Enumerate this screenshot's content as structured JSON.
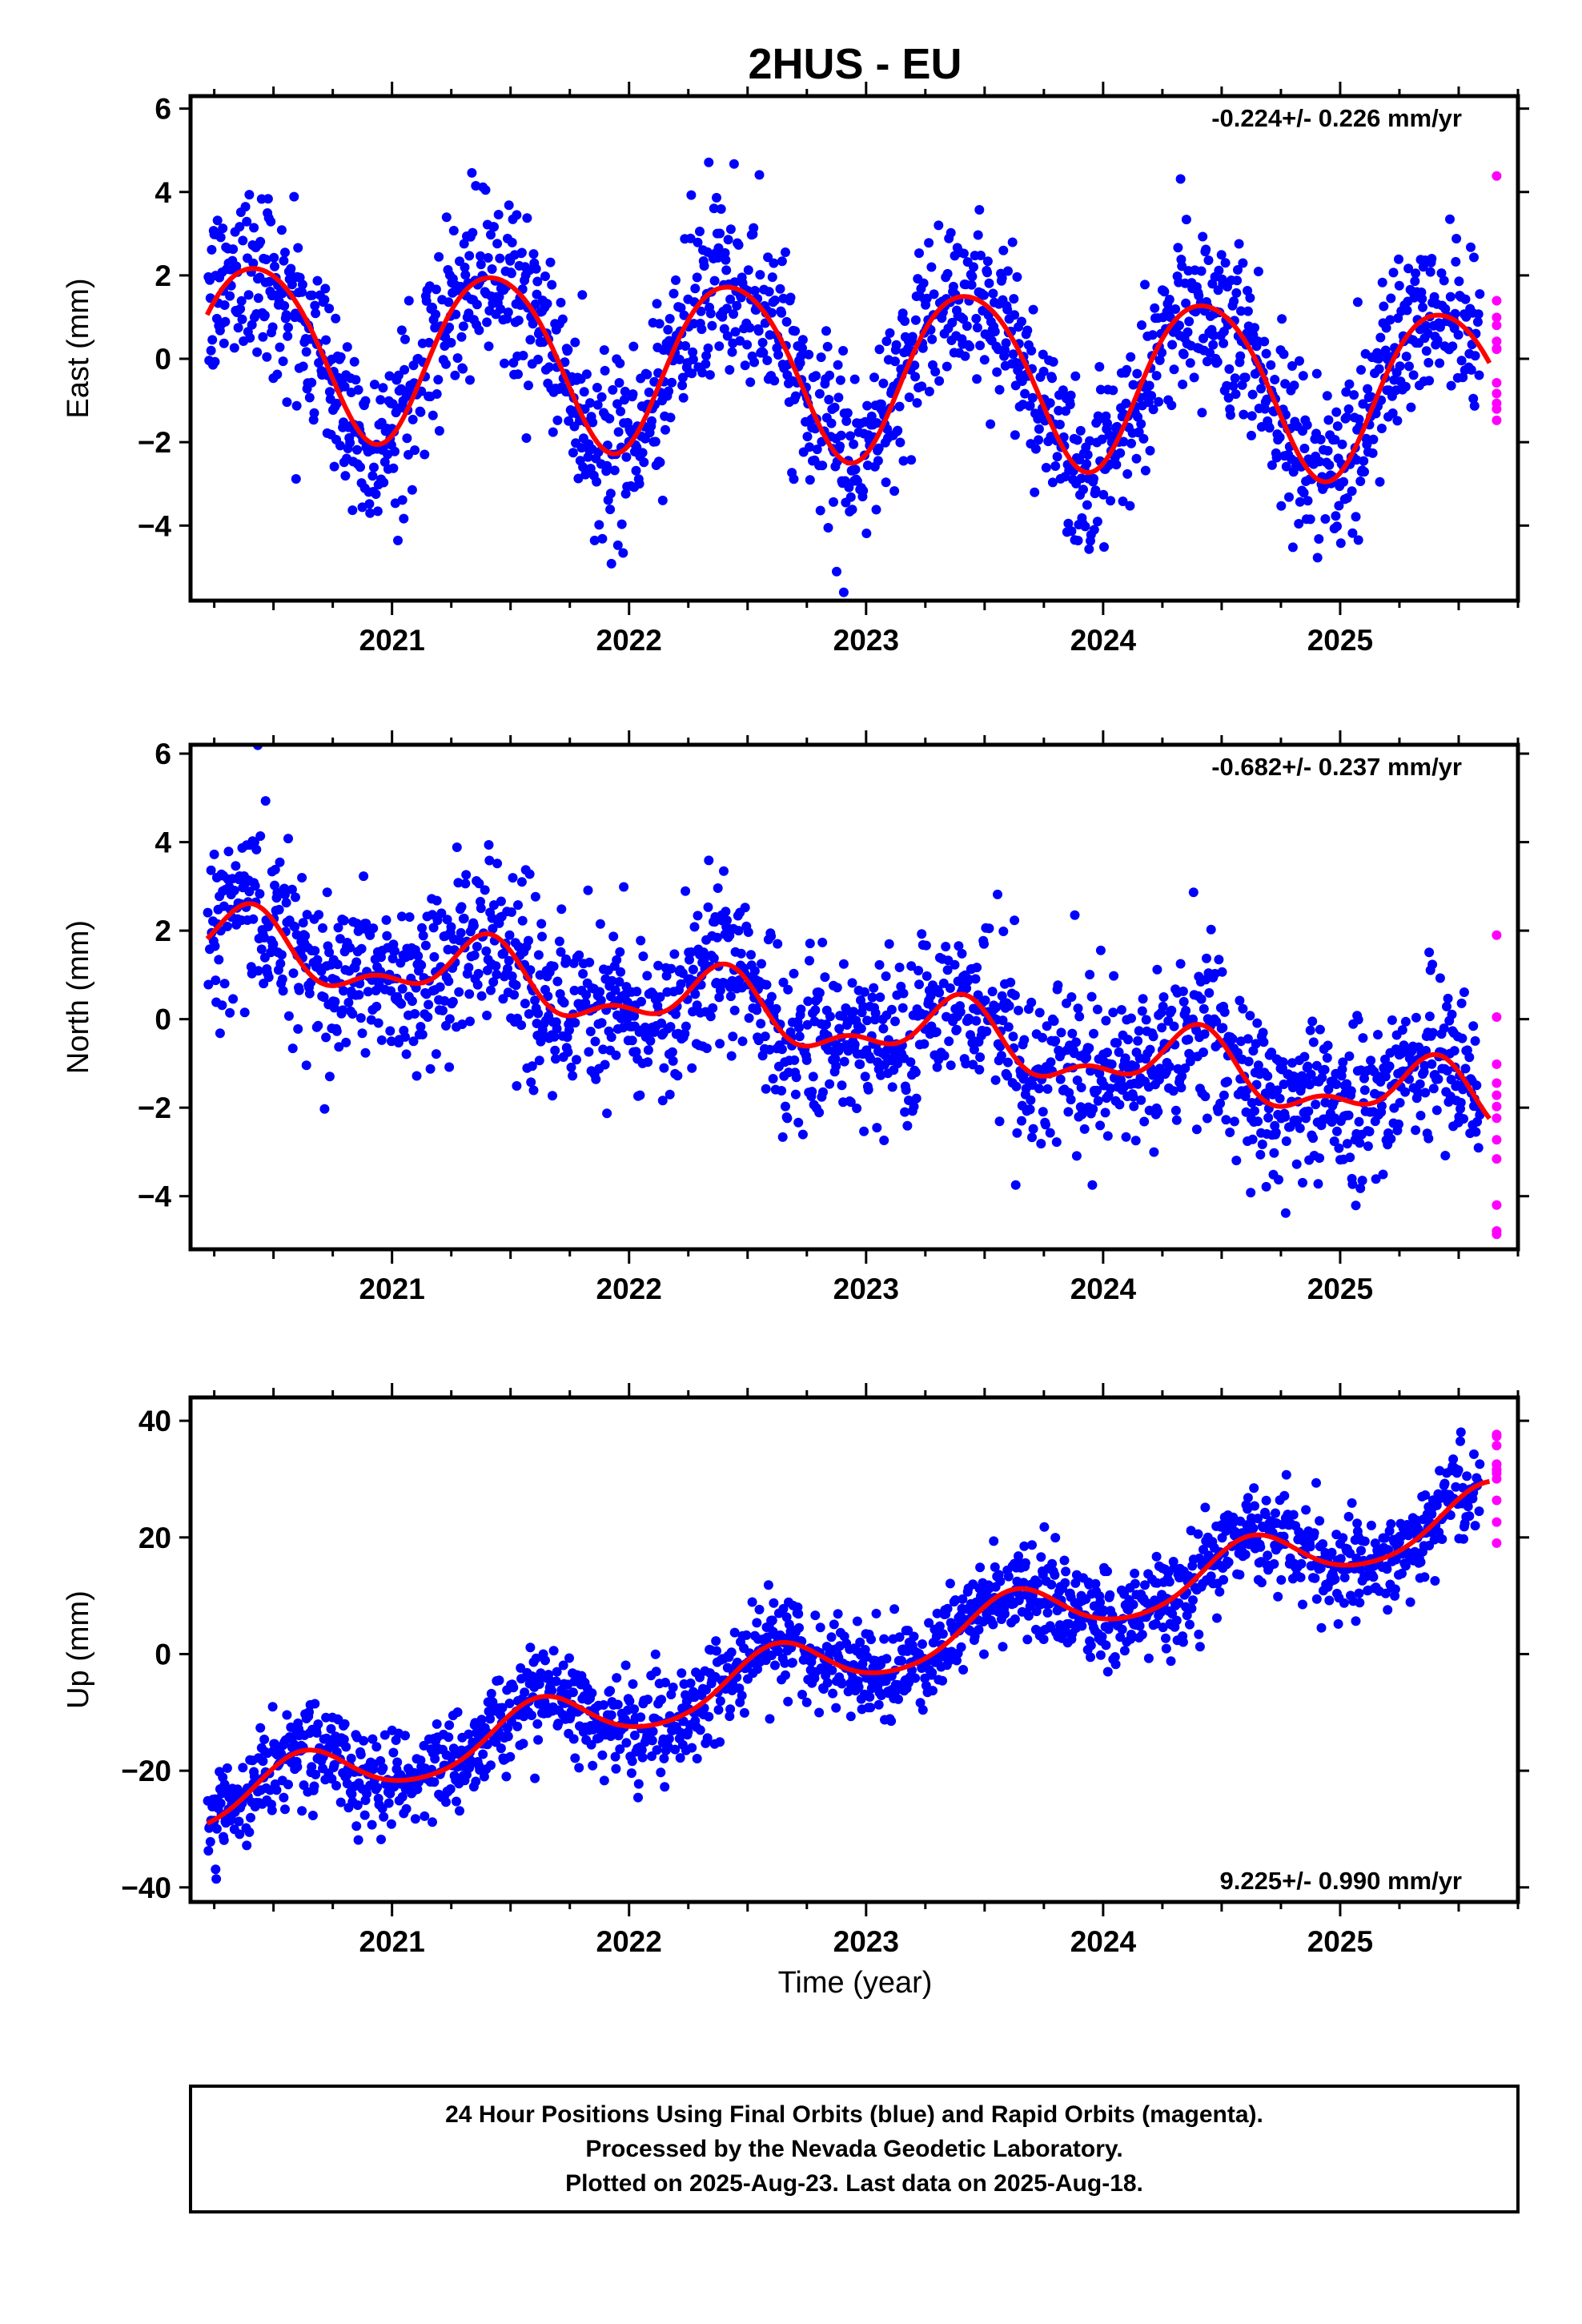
{
  "title": "2HUS - EU",
  "xlabel": "Time (year)",
  "footer": {
    "lines": [
      "24 Hour Positions Using Final Orbits (blue) and Rapid Orbits (magenta).",
      "Processed by the Nevada Geodetic Laboratory.",
      "Plotted on 2025-Aug-23. Last data on 2025-Aug-18."
    ]
  },
  "colors": {
    "final": "#0000ff",
    "rapid": "#ff00ff",
    "model": "#ff0000",
    "frame": "#000000"
  },
  "chart_data": [
    {
      "type": "scatter",
      "id": "east",
      "ylabel": "East (mm)",
      "rate_label": "-0.224+/- 0.226 mm/yr",
      "rate_position": "top-right",
      "xlim": [
        2020.15,
        2025.75
      ],
      "ylim": [
        -5.8,
        6.3
      ],
      "yticks": [
        -4,
        -2,
        0,
        2,
        4,
        6
      ],
      "xticks": [
        2021,
        2022,
        2023,
        2024,
        2025
      ],
      "grid": false,
      "data_start": 2020.22,
      "data_end": 2025.63,
      "rapid_start": 2025.59,
      "trend": {
        "rate": -0.224,
        "offset": 0.35
      },
      "annual": {
        "amp": 2.05,
        "peak_phase": 0.43
      },
      "semiannual": {
        "amp": 0.2,
        "peak_phase": 0.2
      },
      "noise_sd": 1.05,
      "series": [
        {
          "name": "Final Orbits",
          "color": "#0000ff",
          "kind": "points"
        },
        {
          "name": "Rapid Orbits",
          "color": "#ff00ff",
          "kind": "points"
        },
        {
          "name": "Model",
          "color": "#ff0000",
          "kind": "line"
        }
      ]
    },
    {
      "type": "scatter",
      "id": "north",
      "ylabel": "North (mm)",
      "rate_label": "-0.682+/- 0.237 mm/yr",
      "rate_position": "top-right",
      "xlim": [
        2020.15,
        2025.75
      ],
      "ylim": [
        -5.2,
        6.2
      ],
      "yticks": [
        -4,
        -2,
        0,
        2,
        4,
        6
      ],
      "xticks": [
        2021,
        2022,
        2023,
        2024,
        2025
      ],
      "grid": false,
      "data_start": 2020.22,
      "data_end": 2025.63,
      "rapid_start": 2025.59,
      "trend": {
        "rate": -0.682,
        "offset": 1.75
      },
      "annual": {
        "amp": 0.65,
        "peak_phase": 0.38
      },
      "semiannual": {
        "amp": 0.35,
        "peak_phase": 0.42
      },
      "noise_sd": 0.95,
      "series": [
        {
          "name": "Final Orbits",
          "color": "#0000ff",
          "kind": "points"
        },
        {
          "name": "Rapid Orbits",
          "color": "#ff00ff",
          "kind": "points"
        },
        {
          "name": "Model",
          "color": "#ff0000",
          "kind": "line"
        }
      ]
    },
    {
      "type": "scatter",
      "id": "up",
      "ylabel": "Up (mm)",
      "rate_label": "9.225+/- 0.990 mm/yr",
      "rate_position": "bottom-right",
      "xlim": [
        2020.15,
        2025.75
      ],
      "ylim": [
        -42.5,
        44
      ],
      "yticks": [
        -40,
        -20,
        0,
        20,
        40
      ],
      "xticks": [
        2021,
        2022,
        2023,
        2024,
        2025
      ],
      "grid": false,
      "data_start": 2020.22,
      "data_end": 2025.63,
      "rapid_start": 2025.59,
      "trend": {
        "rate": 9.225,
        "offset": -25.5
      },
      "annual": {
        "amp": 4.6,
        "peak_phase": 0.62
      },
      "semiannual": {
        "amp": 0.6,
        "peak_phase": 0.12
      },
      "noise_sd": 4.0,
      "series": [
        {
          "name": "Final Orbits",
          "color": "#0000ff",
          "kind": "points"
        },
        {
          "name": "Rapid Orbits",
          "color": "#ff00ff",
          "kind": "points"
        },
        {
          "name": "Model",
          "color": "#ff0000",
          "kind": "line"
        }
      ]
    }
  ]
}
